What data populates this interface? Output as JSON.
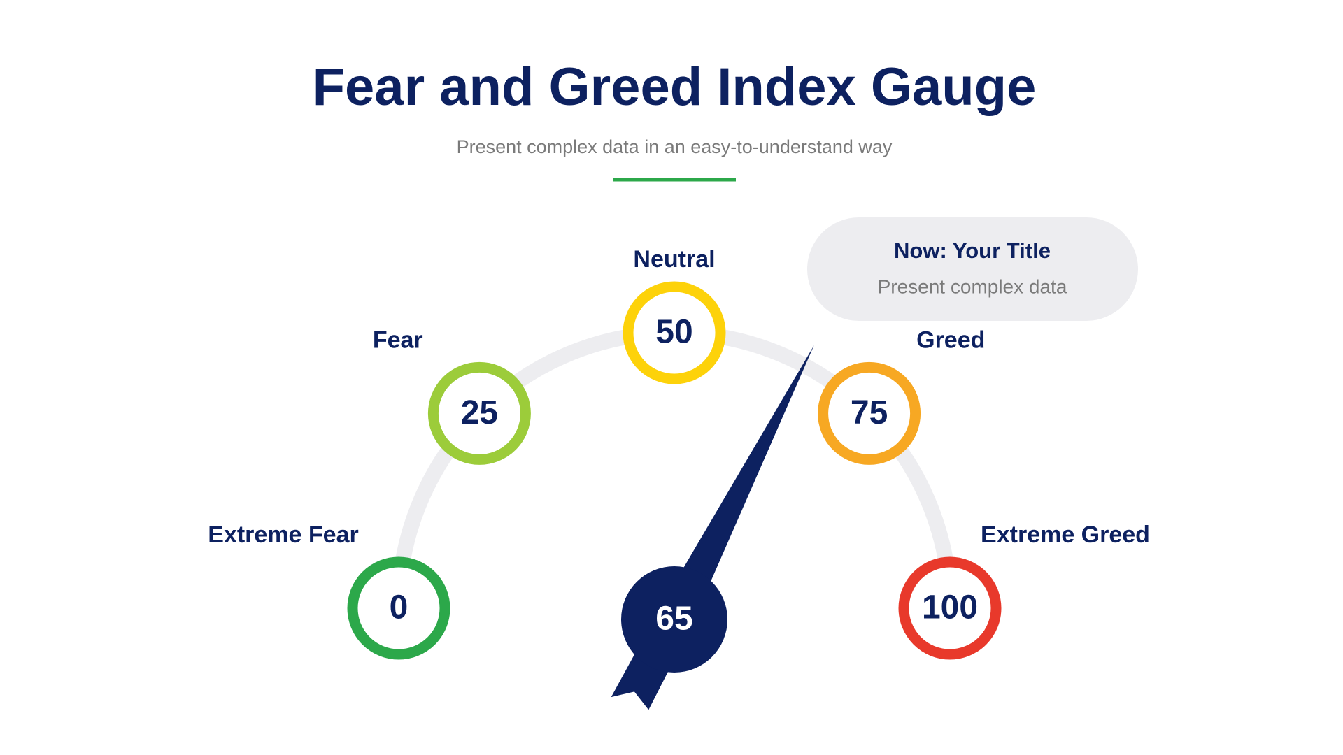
{
  "chart_data": {
    "type": "gauge",
    "title": "Fear and Greed Index Gauge",
    "subtitle": "Present complex data in an easy-to-understand way",
    "categories": [
      "Extreme Fear",
      "Fear",
      "Neutral",
      "Greed",
      "Extreme Greed"
    ],
    "ticks": [
      0,
      25,
      50,
      75,
      100
    ],
    "colors": [
      "#2ca84a",
      "#9ccc3a",
      "#fdd20a",
      "#f7a823",
      "#e8392b"
    ],
    "lim": [
      0,
      100
    ],
    "value": 65,
    "needle_color": "#0d2160",
    "callout": {
      "title": "Now: Your Title",
      "text": "Present complex data"
    }
  }
}
